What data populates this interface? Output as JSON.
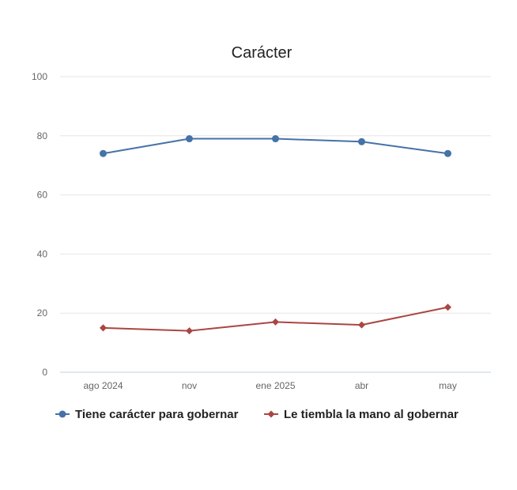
{
  "chart_data": {
    "type": "line",
    "title": "Carácter",
    "xlabel": "",
    "ylabel": "",
    "categories": [
      "ago 2024",
      "nov",
      "ene 2025",
      "abr",
      "may"
    ],
    "yticks": [
      "0",
      "20",
      "40",
      "60",
      "80",
      "100"
    ],
    "ylim": [
      0,
      100
    ],
    "grid": true,
    "legend_position": "bottom-left",
    "series": [
      {
        "name": "Tiene carácter para gobernar",
        "values": [
          74,
          79,
          79,
          78,
          74
        ],
        "color": "#4572A7",
        "marker": "circle"
      },
      {
        "name": "Le tiembla la mano al gobernar",
        "values": [
          15,
          14,
          17,
          16,
          22
        ],
        "color": "#AA4643",
        "marker": "diamond"
      }
    ]
  }
}
